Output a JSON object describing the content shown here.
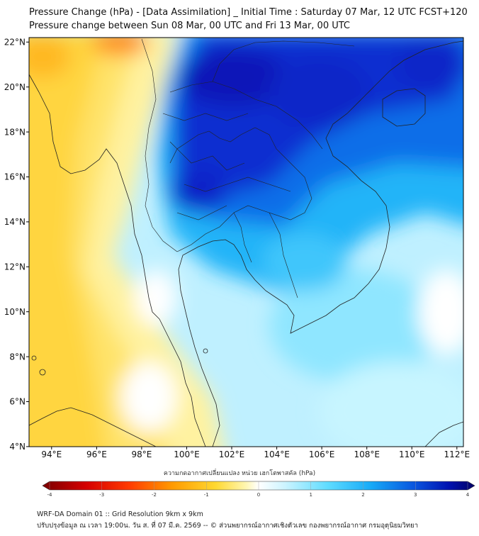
{
  "header": {
    "title_line1": "Pressure Change (hPa) - [Data Assimilation] _ Initial Time : Saturday 07 Mar, 12 UTC FCST+120",
    "title_line2": "Pressure change between Sun 08 Mar, 00 UTC and Fri 13 Mar, 00 UTC"
  },
  "map": {
    "lon_ticks": [
      "94°E",
      "96°E",
      "98°E",
      "100°E",
      "102°E",
      "104°E",
      "106°E",
      "108°E",
      "110°E",
      "112°E"
    ],
    "lat_ticks": [
      "22°N",
      "20°N",
      "18°N",
      "16°N",
      "14°N",
      "12°N",
      "10°N",
      "8°N",
      "6°N",
      "4°N"
    ],
    "lon_range": [
      93,
      112.3
    ],
    "lat_range": [
      4,
      22.2
    ]
  },
  "colorbar": {
    "label": "ความกดอากาศเปลี่ยนแปลง หน่วย เฮกโตพาสคัล (hPa)",
    "ticks": [
      "-4",
      "-3",
      "-2",
      "-1",
      "0",
      "1",
      "2",
      "3",
      "4"
    ],
    "colors": [
      "#7a0000",
      "#d40000",
      "#ff3a00",
      "#ff8a00",
      "#ffc400",
      "#ffe95c",
      "#fff7b8",
      "#ffffff",
      "#d9f7ff",
      "#8fe8ff",
      "#39cfff",
      "#12a2f5",
      "#0a5fe0",
      "#0016b8",
      "#000070"
    ]
  },
  "footer": {
    "line1": "WRF-DA Domain 01 :: Grid Resolution 9km x 9km",
    "line2": "ปรับปรุงข้อมูล ณ เวลา 19:00น. วัน ส. ที่ 07 มี.ค. 2569 -- © ส่วนพยากรณ์อากาศเชิงตัวเลข กองพยากรณ์อากาศ กรมอุตุนิยมวิทยา"
  }
}
